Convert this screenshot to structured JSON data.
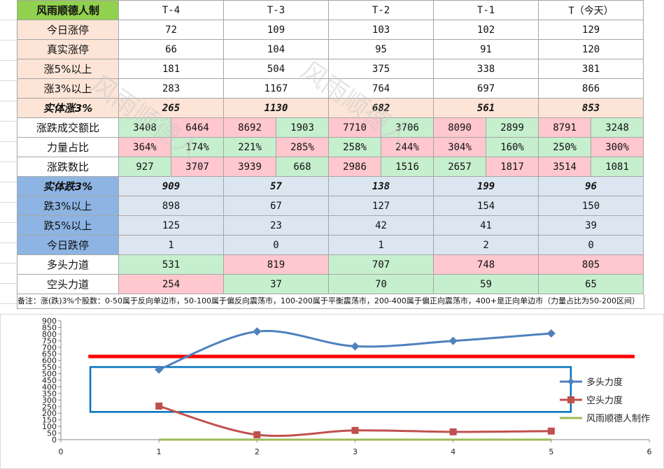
{
  "table": {
    "title": "风雨顺德人制",
    "columns": [
      "T-4",
      "T-3",
      "T-2",
      "T-1",
      "T（今天）"
    ],
    "rows_simple_peach": [
      {
        "label": "今日涨停",
        "values": [
          "72",
          "109",
          "103",
          "102",
          "129"
        ]
      },
      {
        "label": "真实涨停",
        "values": [
          "66",
          "104",
          "95",
          "91",
          "120"
        ]
      },
      {
        "label": "涨5%以上",
        "values": [
          "181",
          "504",
          "375",
          "338",
          "381"
        ]
      },
      {
        "label": "涨3%以上",
        "values": [
          "283",
          "1167",
          "764",
          "697",
          "866"
        ]
      }
    ],
    "solid_up": {
      "label": "实体涨3%",
      "values": [
        "265",
        "1130",
        "682",
        "561",
        "853"
      ]
    },
    "amount_ratio": {
      "label": "涨跌成交额比",
      "pairs": [
        [
          "3408",
          "6464"
        ],
        [
          "8692",
          "1903"
        ],
        [
          "7710",
          "3706"
        ],
        [
          "8090",
          "2899"
        ],
        [
          "8791",
          "3248"
        ]
      ]
    },
    "power_ratio": {
      "label": "力量占比",
      "pairs": [
        [
          "364%",
          "174%"
        ],
        [
          "221%",
          "285%"
        ],
        [
          "258%",
          "244%"
        ],
        [
          "304%",
          "160%"
        ],
        [
          "250%",
          "300%"
        ]
      ]
    },
    "count_ratio": {
      "label": "涨跌数比",
      "pairs": [
        [
          "927",
          "3707"
        ],
        [
          "3939",
          "668"
        ],
        [
          "2986",
          "1516"
        ],
        [
          "2657",
          "1817"
        ],
        [
          "3514",
          "1081"
        ]
      ]
    },
    "solid_down": {
      "label": "实体跌3%",
      "values": [
        "909",
        "57",
        "138",
        "199",
        "96"
      ]
    },
    "rows_simple_blue": [
      {
        "label": "跌3%以上",
        "values": [
          "898",
          "67",
          "127",
          "154",
          "150"
        ]
      },
      {
        "label": "跌5%以上",
        "values": [
          "125",
          "23",
          "42",
          "41",
          "39"
        ]
      },
      {
        "label": "今日跌停",
        "values": [
          "1",
          "0",
          "1",
          "2",
          "0"
        ]
      }
    ],
    "bull": {
      "label": "多头力道",
      "values": [
        "531",
        "819",
        "707",
        "748",
        "805"
      ]
    },
    "bear": {
      "label": "空头力道",
      "values": [
        "254",
        "37",
        "70",
        "59",
        "65"
      ]
    }
  },
  "note": "备注：涨(跌)3%个股数：0-50属于反向单边市，50-100属于偏反向震荡市，100-200属于平衡震荡市，200-400属于偏正向震荡市，400+是正向单边市（力量占比为50-200区间）",
  "watermark": [
    "风雨顺德人"
  ],
  "colors": {
    "bull": "#4f81bd",
    "bear": "#c0504d",
    "maker": "#9bbb59",
    "redline": "#ff0000",
    "box": "#0070c0"
  },
  "chart_data": {
    "type": "line",
    "x": [
      1,
      2,
      3,
      4,
      5
    ],
    "series": [
      {
        "name": "多头力度",
        "values": [
          531,
          819,
          707,
          748,
          805
        ],
        "color": "#4f81bd",
        "marker": "diamond"
      },
      {
        "name": "空头力度",
        "values": [
          254,
          37,
          70,
          59,
          65
        ],
        "color": "#c0504d",
        "marker": "square"
      },
      {
        "name": "风雨顺德人制作",
        "values": [
          0,
          0,
          0,
          0,
          0
        ],
        "color": "#9bbb59",
        "marker": "none"
      }
    ],
    "xlim": [
      0,
      6
    ],
    "ylim": [
      0,
      900
    ],
    "xticks": [
      "0",
      "1",
      "2",
      "3",
      "4",
      "5",
      "6"
    ],
    "yticks": [
      "0",
      "50",
      "100",
      "150",
      "200",
      "250",
      "300",
      "350",
      "400",
      "450",
      "500",
      "550",
      "600",
      "650",
      "700",
      "750",
      "800",
      "850",
      "900"
    ],
    "reference_line": 630,
    "highlight_box": {
      "y_from": 210,
      "y_to": 550,
      "x_from": 0.3,
      "x_to": 5.2
    },
    "legend_position": "right"
  }
}
